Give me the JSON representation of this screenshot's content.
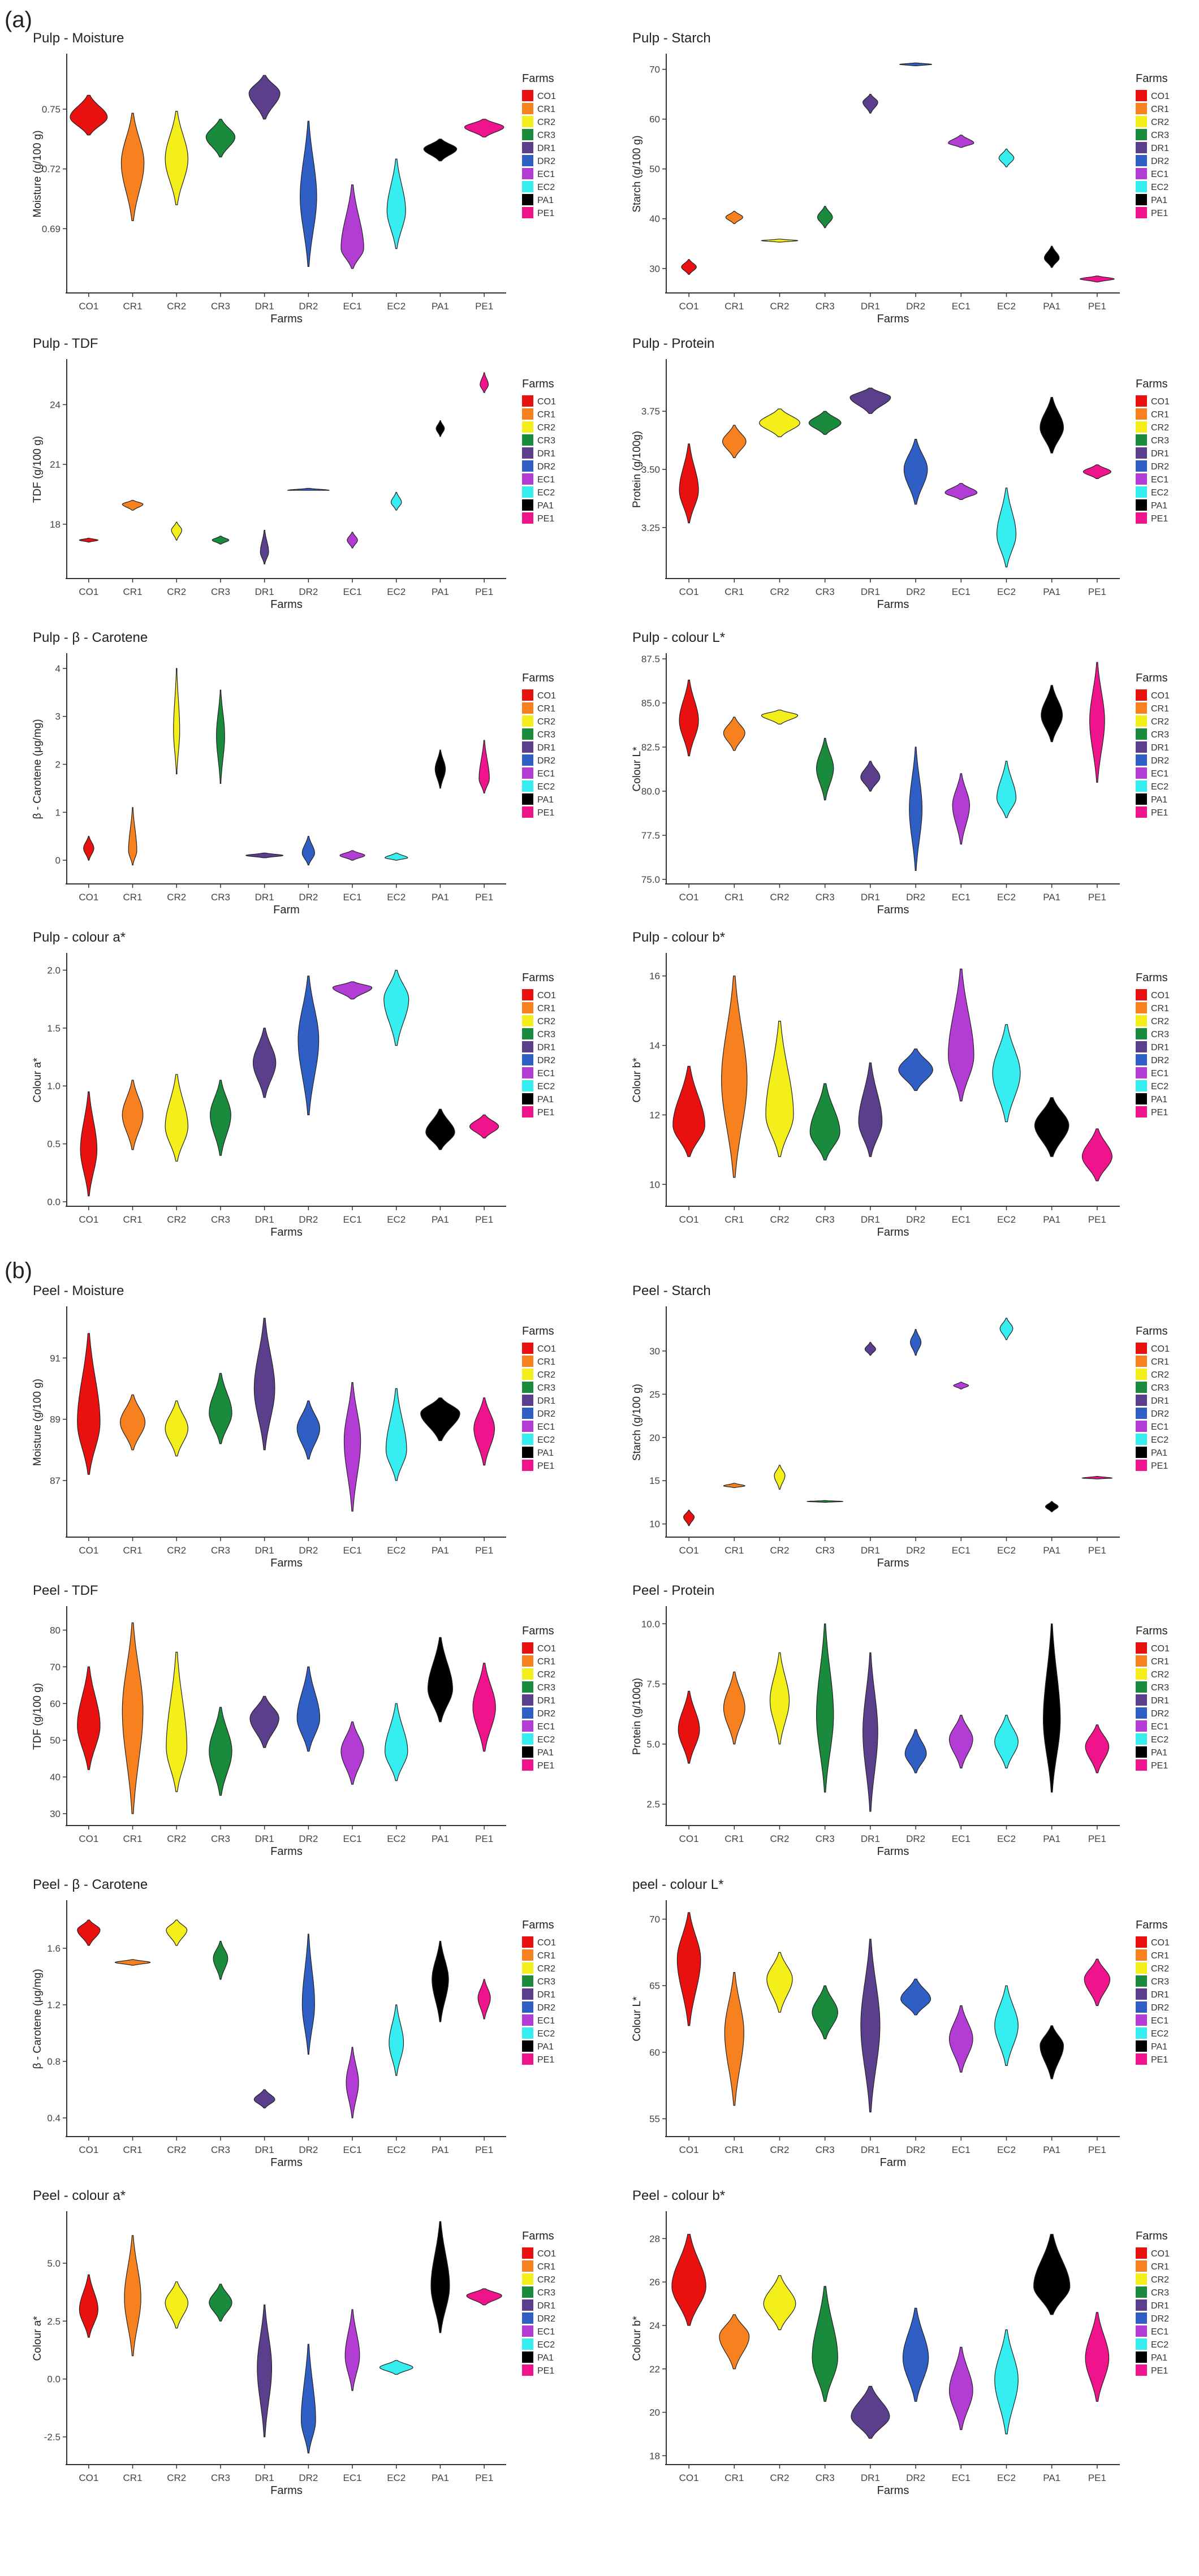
{
  "figure": {
    "section_labels": [
      "(a)",
      "(b)"
    ],
    "farms": [
      "CO1",
      "CR1",
      "CR2",
      "CR3",
      "DR1",
      "DR2",
      "EC1",
      "EC2",
      "PA1",
      "PE1"
    ],
    "legend_title": "Farms",
    "farm_colors": [
      "#e8110f",
      "#f7801f",
      "#f4ef1b",
      "#1a8a3c",
      "#5c3f8c",
      "#2f5ec4",
      "#b33dd4",
      "#36eef0",
      "#000000",
      "#ef138c"
    ]
  },
  "chart_data": [
    {
      "type": "violin",
      "title": "Pulp - Moisture",
      "xlabel": "Farms",
      "ylabel": "Moisture (g/100 g)",
      "ylim": [
        0.66,
        0.775
      ],
      "yticks": [
        0.69,
        0.72,
        0.75
      ],
      "ytick_labels": [
        "0.69",
        "0.72",
        "0.75"
      ],
      "centers": [
        0.746,
        0.723,
        0.725,
        0.736,
        0.758,
        0.706,
        0.68,
        0.699,
        0.73,
        0.741
      ],
      "lows": [
        0.737,
        0.694,
        0.702,
        0.726,
        0.745,
        0.671,
        0.67,
        0.68,
        0.724,
        0.736
      ],
      "highs": [
        0.757,
        0.748,
        0.749,
        0.745,
        0.767,
        0.744,
        0.712,
        0.725,
        0.735,
        0.745
      ],
      "widths": [
        0.9,
        0.55,
        0.55,
        0.7,
        0.75,
        0.4,
        0.55,
        0.45,
        0.8,
        0.95
      ]
    },
    {
      "type": "violin",
      "title": "Pulp - Starch",
      "xlabel": "Farms",
      "ylabel": "Starch (g/100 g)",
      "ylim": [
        26,
        72
      ],
      "yticks": [
        30,
        40,
        50,
        60,
        70
      ],
      "ytick_labels": [
        "30",
        "40",
        "50",
        "60",
        "70"
      ],
      "centers": [
        30.3,
        40.3,
        35.6,
        40.3,
        63.4,
        71.0,
        55.2,
        52.2,
        32.1,
        27.9
      ],
      "lows": [
        28.8,
        39.0,
        35.3,
        38.2,
        61.2,
        70.7,
        54.3,
        50.4,
        30.2,
        27.3
      ],
      "highs": [
        31.8,
        41.5,
        35.9,
        42.5,
        65.0,
        71.3,
        56.8,
        54.0,
        34.5,
        28.5
      ],
      "widths": [
        0.35,
        0.4,
        0.85,
        0.35,
        0.35,
        0.75,
        0.6,
        0.35,
        0.35,
        0.8
      ]
    },
    {
      "type": "violin",
      "title": "Pulp - TDF",
      "xlabel": "Farms",
      "ylabel": "TDF (g/100 g)",
      "ylim": [
        15.5,
        26.0
      ],
      "yticks": [
        18,
        21,
        24
      ],
      "ytick_labels": [
        "18",
        "21",
        "24"
      ],
      "centers": [
        17.2,
        19.0,
        17.7,
        17.2,
        16.6,
        19.7,
        17.2,
        19.1,
        22.8,
        25.0
      ],
      "lows": [
        17.1,
        18.7,
        17.2,
        17.0,
        16.0,
        19.7,
        16.8,
        18.7,
        22.4,
        24.6
      ],
      "highs": [
        17.3,
        19.2,
        18.1,
        17.4,
        17.7,
        19.8,
        17.6,
        19.6,
        23.2,
        25.6
      ],
      "widths": [
        0.45,
        0.5,
        0.25,
        0.4,
        0.2,
        1.0,
        0.25,
        0.25,
        0.2,
        0.2
      ]
    },
    {
      "type": "violin",
      "title": "Pulp - Protein",
      "xlabel": "Farms",
      "ylabel": "Protein (g/100g)",
      "ylim": [
        3.05,
        3.95
      ],
      "yticks": [
        3.25,
        3.5,
        3.75
      ],
      "ytick_labels": [
        "3.25",
        "3.50",
        "3.75"
      ],
      "centers": [
        3.41,
        3.62,
        3.7,
        3.7,
        3.81,
        3.5,
        3.4,
        3.22,
        3.68,
        3.49
      ],
      "lows": [
        3.27,
        3.55,
        3.64,
        3.65,
        3.74,
        3.35,
        3.37,
        3.08,
        3.57,
        3.46
      ],
      "highs": [
        3.61,
        3.69,
        3.76,
        3.75,
        3.85,
        3.63,
        3.44,
        3.42,
        3.81,
        3.52
      ],
      "widths": [
        0.45,
        0.55,
        0.95,
        0.75,
        0.95,
        0.55,
        0.75,
        0.45,
        0.55,
        0.65
      ]
    },
    {
      "type": "violin",
      "title": "Pulp - β - Carotene",
      "xlabel": "Farm",
      "ylabel": "β - Carotene (μg/mg)",
      "ylim": [
        -0.4,
        4.2
      ],
      "yticks": [
        0,
        1,
        2,
        3,
        4
      ],
      "ytick_labels": [
        "0",
        "1",
        "2",
        "3",
        "4"
      ],
      "centers": [
        0.25,
        0.2,
        2.7,
        2.6,
        0.1,
        0.15,
        0.1,
        0.05,
        1.9,
        1.7
      ],
      "lows": [
        0.0,
        -0.1,
        1.8,
        1.6,
        0.05,
        -0.1,
        0.0,
        0.0,
        1.5,
        1.4
      ],
      "highs": [
        0.5,
        1.1,
        4.0,
        3.55,
        0.15,
        0.5,
        0.2,
        0.15,
        2.3,
        2.5
      ],
      "widths": [
        0.25,
        0.2,
        0.15,
        0.2,
        0.9,
        0.3,
        0.6,
        0.55,
        0.25,
        0.25
      ]
    },
    {
      "type": "violin",
      "title": "Pulp - colour L*",
      "xlabel": "Farms",
      "ylabel": "Colour L*",
      "ylim": [
        75.0,
        87.5
      ],
      "yticks": [
        75.0,
        77.5,
        80.0,
        82.5,
        85.0,
        87.5
      ],
      "ytick_labels": [
        "75.0",
        "77.5",
        "80.0",
        "82.5",
        "85.0",
        "87.5"
      ],
      "centers": [
        84.0,
        83.3,
        84.3,
        81.3,
        80.8,
        79.0,
        79.2,
        79.6,
        84.3,
        84.0
      ],
      "lows": [
        82.0,
        82.3,
        83.8,
        79.5,
        80.0,
        75.5,
        77.0,
        78.5,
        82.8,
        80.5
      ],
      "highs": [
        86.3,
        84.2,
        84.6,
        83.0,
        81.7,
        82.5,
        81.0,
        81.7,
        86.0,
        87.3
      ],
      "widths": [
        0.45,
        0.5,
        0.85,
        0.4,
        0.45,
        0.3,
        0.4,
        0.45,
        0.5,
        0.35
      ]
    },
    {
      "type": "violin",
      "title": "Pulp - colour a*",
      "xlabel": "Farms",
      "ylabel": "Colour a*",
      "ylim": [
        0,
        2.1
      ],
      "yticks": [
        0.0,
        0.5,
        1.0,
        1.5,
        2.0
      ],
      "ytick_labels": [
        "0.0",
        "0.5",
        "1.0",
        "1.5",
        "2.0"
      ],
      "centers": [
        0.45,
        0.75,
        0.65,
        0.75,
        1.2,
        1.4,
        1.85,
        1.75,
        0.6,
        0.65
      ],
      "lows": [
        0.05,
        0.45,
        0.35,
        0.4,
        0.9,
        0.75,
        1.75,
        1.35,
        0.45,
        0.55
      ],
      "highs": [
        0.95,
        1.05,
        1.1,
        1.05,
        1.5,
        1.95,
        1.9,
        2.0,
        0.8,
        0.75
      ],
      "widths": [
        0.4,
        0.5,
        0.55,
        0.5,
        0.55,
        0.5,
        0.95,
        0.6,
        0.7,
        0.7
      ]
    },
    {
      "type": "violin",
      "title": "Pulp - colour b*",
      "xlabel": "Farms",
      "ylabel": "Colour b*",
      "ylim": [
        9.5,
        16.5
      ],
      "yticks": [
        10,
        12,
        14,
        16
      ],
      "ytick_labels": [
        "10",
        "12",
        "14",
        "16"
      ],
      "centers": [
        11.7,
        13.0,
        12.0,
        11.5,
        11.8,
        13.3,
        13.7,
        13.2,
        11.7,
        10.8
      ],
      "lows": [
        10.8,
        10.2,
        10.8,
        10.7,
        10.8,
        12.7,
        12.4,
        11.8,
        10.8,
        10.1
      ],
      "highs": [
        13.4,
        16.0,
        14.7,
        12.9,
        13.5,
        13.9,
        16.2,
        14.6,
        12.5,
        11.6
      ],
      "widths": [
        0.75,
        0.6,
        0.65,
        0.7,
        0.55,
        0.8,
        0.6,
        0.65,
        0.8,
        0.7
      ]
    },
    {
      "type": "violin",
      "title": "Peel - Moisture",
      "xlabel": "Farms",
      "ylabel": "Moisture (g/100 g)",
      "ylim": [
        85.3,
        92.5
      ],
      "yticks": [
        87,
        89,
        91
      ],
      "ytick_labels": [
        "87",
        "89",
        "91"
      ],
      "centers": [
        88.9,
        88.9,
        88.7,
        89.2,
        90.0,
        88.7,
        88.3,
        88.0,
        89.2,
        88.7
      ],
      "lows": [
        87.2,
        88.0,
        87.8,
        88.2,
        88.0,
        87.7,
        86.0,
        87.0,
        88.3,
        87.5
      ],
      "highs": [
        91.8,
        89.8,
        89.6,
        90.5,
        92.3,
        89.6,
        90.2,
        90.0,
        89.7,
        89.7
      ],
      "widths": [
        0.55,
        0.6,
        0.55,
        0.55,
        0.5,
        0.55,
        0.4,
        0.5,
        0.95,
        0.5
      ]
    },
    {
      "type": "violin",
      "title": "Peel - Starch",
      "xlabel": "Farms",
      "ylabel": "Starch (g/100 g)",
      "ylim": [
        9.0,
        34.5
      ],
      "yticks": [
        10,
        15,
        20,
        25,
        30
      ],
      "ytick_labels": [
        "10",
        "15",
        "20",
        "25",
        "30"
      ],
      "centers": [
        10.8,
        14.4,
        15.6,
        12.6,
        30.2,
        31.0,
        26.0,
        32.6,
        12.0,
        15.3
      ],
      "lows": [
        9.8,
        14.2,
        14.0,
        12.5,
        29.5,
        29.5,
        25.6,
        31.3,
        11.4,
        15.2
      ],
      "highs": [
        11.6,
        14.7,
        16.8,
        12.7,
        31.0,
        32.5,
        26.4,
        33.8,
        12.6,
        15.5
      ],
      "widths": [
        0.25,
        0.5,
        0.25,
        0.85,
        0.25,
        0.25,
        0.35,
        0.3,
        0.3,
        0.7
      ]
    },
    {
      "type": "violin",
      "title": "Peel - TDF",
      "xlabel": "Farms",
      "ylabel": "TDF (g/100 g)",
      "ylim": [
        28,
        85
      ],
      "yticks": [
        30,
        40,
        50,
        60,
        70,
        80
      ],
      "ytick_labels": [
        "30",
        "40",
        "50",
        "60",
        "70",
        "80"
      ],
      "centers": [
        54,
        58,
        48,
        47,
        56,
        56,
        47,
        47,
        64,
        59
      ],
      "lows": [
        42,
        30,
        36,
        35,
        48,
        47,
        38,
        39,
        55,
        47
      ],
      "highs": [
        70,
        82,
        74,
        59,
        62,
        70,
        55,
        60,
        78,
        71
      ],
      "widths": [
        0.55,
        0.5,
        0.5,
        0.55,
        0.7,
        0.55,
        0.55,
        0.55,
        0.6,
        0.55
      ]
    },
    {
      "type": "violin",
      "title": "Peel - Protein",
      "xlabel": "Farms",
      "ylabel": "Protein (g/100g)",
      "ylim": [
        1.8,
        10.5
      ],
      "yticks": [
        2.5,
        5.0,
        7.5,
        10.0
      ],
      "ytick_labels": [
        "2.5",
        "5.0",
        "7.5",
        "10.0"
      ],
      "centers": [
        5.6,
        6.5,
        6.8,
        6.2,
        5.5,
        4.6,
        5.2,
        5.1,
        6.0,
        4.9
      ],
      "lows": [
        4.2,
        5.0,
        5.0,
        3.0,
        2.2,
        3.8,
        4.0,
        4.0,
        3.0,
        3.8
      ],
      "highs": [
        7.2,
        8.0,
        8.8,
        10.0,
        8.8,
        5.6,
        6.2,
        6.2,
        10.0,
        5.8
      ],
      "widths": [
        0.5,
        0.5,
        0.45,
        0.4,
        0.35,
        0.5,
        0.55,
        0.55,
        0.4,
        0.55
      ]
    },
    {
      "type": "violin",
      "title": "Peel - β - Carotene",
      "xlabel": "Farms",
      "ylabel": "β - Carotene (μg/mg)",
      "ylim": [
        0.3,
        1.9
      ],
      "yticks": [
        0.4,
        0.8,
        1.2,
        1.6
      ],
      "ytick_labels": [
        "0.4",
        "0.8",
        "1.2",
        "1.6"
      ],
      "centers": [
        1.73,
        1.5,
        1.73,
        1.53,
        0.53,
        1.2,
        0.65,
        0.93,
        1.38,
        1.25
      ],
      "lows": [
        1.62,
        1.48,
        1.62,
        1.38,
        0.47,
        0.85,
        0.4,
        0.7,
        1.08,
        1.1
      ],
      "highs": [
        1.8,
        1.52,
        1.8,
        1.65,
        0.6,
        1.7,
        0.9,
        1.2,
        1.65,
        1.38
      ],
      "widths": [
        0.55,
        0.85,
        0.5,
        0.35,
        0.5,
        0.3,
        0.3,
        0.35,
        0.4,
        0.3
      ]
    },
    {
      "type": "violin",
      "title": "peel - colour L*",
      "xlabel": "Farm",
      "ylabel": "Colour L*",
      "ylim": [
        54,
        71
      ],
      "yticks": [
        55,
        60,
        65,
        70
      ],
      "ytick_labels": [
        "55",
        "60",
        "65",
        "70"
      ],
      "centers": [
        67.0,
        61.5,
        65.5,
        63.0,
        62.0,
        64.0,
        61.0,
        62.0,
        60.5,
        65.5
      ],
      "lows": [
        62.0,
        56.0,
        63.0,
        61.0,
        55.5,
        62.8,
        58.5,
        59.0,
        58.0,
        63.5
      ],
      "highs": [
        70.5,
        66.0,
        67.5,
        65.0,
        68.5,
        65.5,
        63.5,
        65.0,
        62.0,
        67.0
      ],
      "widths": [
        0.55,
        0.45,
        0.6,
        0.6,
        0.45,
        0.7,
        0.55,
        0.55,
        0.55,
        0.6
      ]
    },
    {
      "type": "violin",
      "title": "Peel - colour a*",
      "xlabel": "Farms",
      "ylabel": "Colour a*",
      "ylim": [
        -3.5,
        7
      ],
      "yticks": [
        -2.5,
        0.0,
        2.5,
        5.0
      ],
      "ytick_labels": [
        "-2.5",
        "0.0",
        "2.5",
        "5.0"
      ],
      "centers": [
        3.0,
        3.5,
        3.3,
        3.3,
        0.5,
        -1.8,
        1.0,
        0.5,
        4.0,
        3.6
      ],
      "lows": [
        1.8,
        1.0,
        2.2,
        2.5,
        -2.5,
        -3.2,
        -0.5,
        0.2,
        2.0,
        3.2
      ],
      "highs": [
        4.5,
        6.2,
        4.2,
        4.1,
        3.2,
        1.5,
        3.0,
        0.8,
        6.8,
        3.9
      ],
      "widths": [
        0.45,
        0.4,
        0.55,
        0.55,
        0.35,
        0.35,
        0.35,
        0.8,
        0.45,
        0.85
      ]
    },
    {
      "type": "violin",
      "title": "Peel - colour b*",
      "xlabel": "Farms",
      "ylabel": "Colour b*",
      "ylim": [
        17.8,
        29
      ],
      "yticks": [
        18,
        20,
        22,
        24,
        26,
        28
      ],
      "ytick_labels": [
        "18",
        "20",
        "22",
        "24",
        "26",
        "28"
      ],
      "centers": [
        25.8,
        23.5,
        25.0,
        22.5,
        19.8,
        22.5,
        21.0,
        21.5,
        25.8,
        22.5
      ],
      "lows": [
        24.0,
        22.0,
        23.8,
        20.5,
        18.8,
        20.5,
        19.2,
        19.0,
        24.5,
        20.5
      ],
      "highs": [
        28.2,
        24.5,
        26.3,
        25.8,
        21.2,
        24.8,
        23.0,
        23.8,
        28.2,
        24.6
      ],
      "widths": [
        0.8,
        0.7,
        0.75,
        0.6,
        0.9,
        0.6,
        0.55,
        0.55,
        0.85,
        0.55
      ]
    }
  ]
}
